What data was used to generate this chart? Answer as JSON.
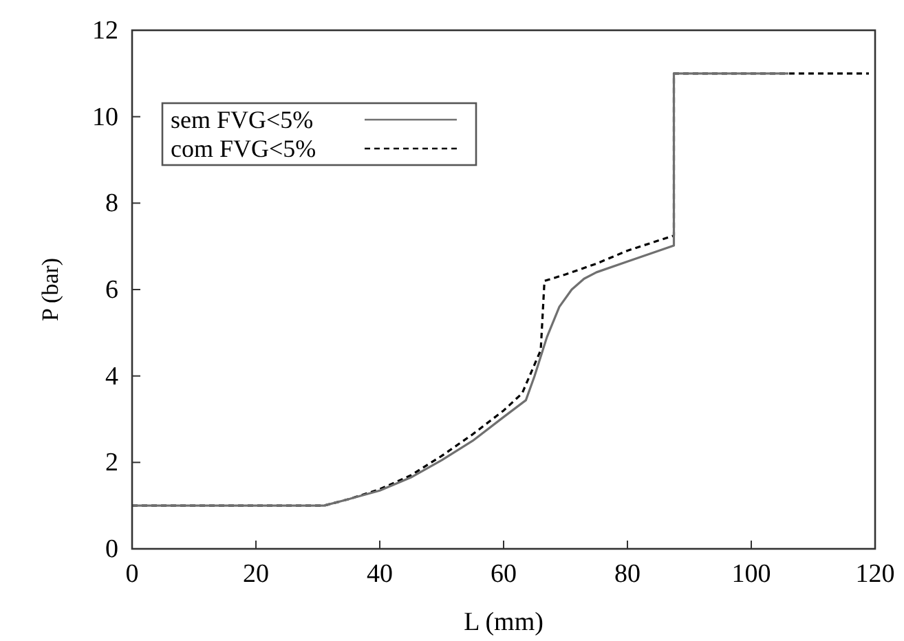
{
  "chart_data": {
    "type": "line",
    "xlabel": "L (mm)",
    "ylabel": "P (bar)",
    "xlim": [
      0,
      120
    ],
    "ylim": [
      0,
      12
    ],
    "xticks": [
      0,
      20,
      40,
      60,
      80,
      100,
      120
    ],
    "yticks": [
      0,
      2,
      4,
      6,
      8,
      10,
      12
    ],
    "grid": false,
    "legend": "top left",
    "series": [
      {
        "name": "com FVG<5%",
        "color": "#000000",
        "line_style": "dashed",
        "x": [
          0,
          31,
          35,
          40,
          45,
          50,
          55,
          60,
          63,
          66,
          66.6,
          70,
          75,
          80,
          87.5,
          87.5,
          119
        ],
        "values": [
          1,
          1,
          1.15,
          1.38,
          1.7,
          2.15,
          2.65,
          3.2,
          3.6,
          4.6,
          6.2,
          6.35,
          6.6,
          6.9,
          7.25,
          11,
          11
        ]
      },
      {
        "name": "sem FVG<5%",
        "color": "#707070",
        "line_style": "solid",
        "x": [
          0,
          31,
          35,
          40,
          45,
          50,
          55,
          60,
          63.6,
          65,
          67,
          69,
          71,
          73,
          75,
          80,
          87.5,
          87.5,
          106
        ],
        "values": [
          1,
          1,
          1.15,
          1.35,
          1.65,
          2.05,
          2.5,
          3.05,
          3.44,
          4.0,
          4.9,
          5.6,
          6.0,
          6.25,
          6.4,
          6.65,
          7.02,
          11,
          11
        ]
      }
    ]
  }
}
